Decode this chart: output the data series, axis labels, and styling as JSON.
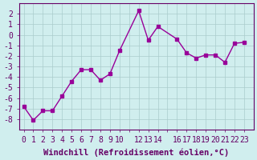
{
  "x": [
    0,
    1,
    2,
    3,
    4,
    5,
    6,
    7,
    8,
    9,
    10,
    12,
    13,
    14,
    16,
    17,
    18,
    19,
    20,
    21,
    22,
    23
  ],
  "y": [
    -6.8,
    -8.1,
    -7.2,
    -7.2,
    -5.8,
    -4.4,
    -3.3,
    -3.3,
    -4.3,
    -3.7,
    -1.5,
    2.3,
    -0.5,
    0.8,
    -0.4,
    -1.7,
    -2.2,
    -1.9,
    -1.9,
    -2.6,
    -0.8,
    -0.7
  ],
  "line_color": "#990099",
  "marker_color": "#990099",
  "bg_color": "#d0eeee",
  "grid_color": "#aacccc",
  "xlabel": "Windchill (Refroidissement éolien,°C)",
  "xlim": [
    -0.5,
    24
  ],
  "ylim": [
    -9,
    3
  ],
  "yticks": [
    -8,
    -7,
    -6,
    -5,
    -4,
    -3,
    -2,
    -1,
    0,
    1,
    2
  ],
  "xticks": [
    0,
    1,
    2,
    3,
    4,
    5,
    6,
    7,
    8,
    9,
    10,
    11,
    12,
    13,
    14,
    15,
    16,
    17,
    18,
    19,
    20,
    21,
    22,
    23
  ],
  "xtick_labels": [
    "0",
    "1",
    "2",
    "3",
    "4",
    "5",
    "6",
    "7",
    "8",
    "9",
    "10",
    "",
    "12",
    "13",
    "14",
    "",
    "16",
    "17",
    "18",
    "19",
    "20",
    "21",
    "22",
    "23"
  ],
  "xlabel_fontsize": 7.5,
  "tick_fontsize": 7,
  "axis_color": "#660066",
  "text_color": "#660066"
}
